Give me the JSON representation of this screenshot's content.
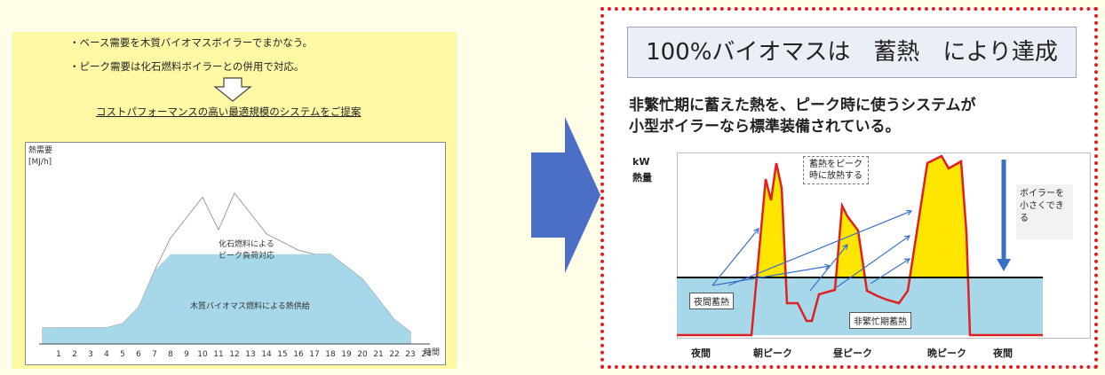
{
  "left": {
    "note1": "・ベース需要を木質バイオマスボイラーでまかなう。",
    "note2": "・ピーク需要は化石燃料ボイラーとの併用で対応。",
    "proposal": "コストパフォーマンスの高い最適規模のシステムをご提案",
    "chart_data": {
      "type": "area",
      "ylabel": "熱需要",
      "yunit": "[MJ/h]",
      "xunit": "時間",
      "x": [
        1,
        2,
        3,
        4,
        5,
        6,
        7,
        8,
        9,
        10,
        11,
        12,
        13,
        14,
        15,
        16,
        17,
        18,
        19,
        20,
        21,
        22,
        23,
        24
      ],
      "series": [
        {
          "name": "化石燃料による ピーク負荷対応",
          "values": [
            0.08,
            0.08,
            0.08,
            0.08,
            0.08,
            0.1,
            0.18,
            0.36,
            0.52,
            0.62,
            0.72,
            0.56,
            0.74,
            0.64,
            0.54,
            0.5,
            0.46,
            0.44,
            0.44,
            0.38,
            0.32,
            0.22,
            0.12,
            0.06
          ]
        },
        {
          "name": "木質バイオマス燃料による熱供給",
          "values": [
            0.08,
            0.08,
            0.08,
            0.08,
            0.08,
            0.1,
            0.18,
            0.36,
            0.44,
            0.44,
            0.44,
            0.44,
            0.44,
            0.44,
            0.44,
            0.44,
            0.44,
            0.44,
            0.44,
            0.38,
            0.32,
            0.22,
            0.12,
            0.06
          ]
        }
      ],
      "fossil_label_1": "化石燃料による",
      "fossil_label_2": "ピーク負荷対応",
      "biomass_label": "木質バイオマス燃料による熱供給"
    }
  },
  "arrow_color": "#4a6fc4",
  "right": {
    "title": "100%バイオマスは　蓄熱　により達成",
    "desc1": "非繁忙期に蓄えた熱を、ピーク時に使うシステムが",
    "desc2": "小型ボイラーなら標準装備されている。",
    "chart_data": {
      "type": "area",
      "ylabel_1": "kW",
      "ylabel_2": "熱量",
      "x_labels": [
        "夜間",
        "朝ピーク",
        "昼ピーク",
        "晩ピーク",
        "夜間"
      ],
      "storage_night": "夜間蓄熱",
      "storage_offpeak": "非繁忙期蓄熱",
      "release_1": "蓄熱をピーク",
      "release_2": "時に放熱する",
      "side_1": "ボイラーを",
      "side_2": "小さくでき",
      "side_3": "る",
      "peak_color": "#ffe600",
      "base_color": "#a6d8ea",
      "line_color": "#e02020"
    }
  }
}
